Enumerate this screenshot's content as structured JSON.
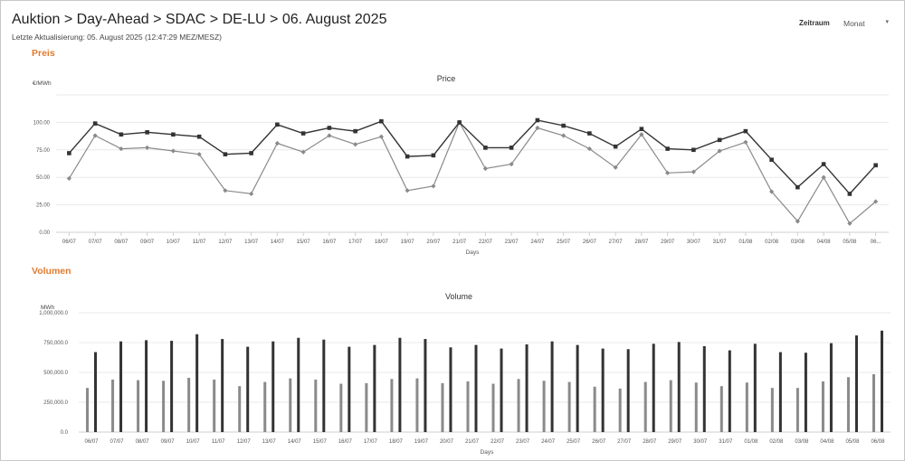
{
  "header": {
    "title": "Auktion > Day-Ahead > SDAC > DE-LU > 06. August 2025",
    "last_update": "Letzte Aktualisierung: 05. August 2025 (12:47:29 MEZ/MESZ)",
    "period_label": "Zeitraum",
    "period_value": "Monat"
  },
  "sections": {
    "price": "Preis",
    "volume": "Volumen"
  },
  "colors": {
    "accent": "#e07a2f",
    "series_dark": "#333333",
    "series_light": "#8a8a8a"
  },
  "chart_data": [
    {
      "type": "line",
      "title": "Price",
      "ylabel": "€/MWh",
      "xlabel": "Days",
      "ylim": [
        0,
        125
      ],
      "yticks": [
        "0.00",
        "25.00",
        "50.00",
        "75.00",
        "100.00"
      ],
      "grid": true,
      "categories": [
        "06/07",
        "07/07",
        "08/07",
        "09/07",
        "10/07",
        "11/07",
        "12/07",
        "13/07",
        "14/07",
        "15/07",
        "16/07",
        "17/07",
        "18/07",
        "19/07",
        "20/07",
        "21/07",
        "22/07",
        "23/07",
        "24/07",
        "25/07",
        "26/07",
        "27/07",
        "28/07",
        "29/07",
        "30/07",
        "31/07",
        "01/08",
        "02/08",
        "03/08",
        "04/08",
        "05/08",
        "06..."
      ],
      "series": [
        {
          "values": [
            72,
            99,
            89,
            91,
            89,
            87,
            71,
            72,
            98,
            90,
            95,
            92,
            101,
            69,
            70,
            100,
            77,
            77,
            102,
            97,
            90,
            78,
            94,
            76,
            75,
            84,
            92,
            66,
            41,
            62,
            35,
            61
          ]
        },
        {
          "values": [
            49,
            88,
            76,
            77,
            74,
            71,
            38,
            35,
            81,
            73,
            88,
            80,
            87,
            38,
            42,
            100,
            58,
            62,
            95,
            88,
            76,
            59,
            89,
            54,
            55,
            74,
            82,
            37,
            10,
            50,
            8,
            28
          ]
        }
      ]
    },
    {
      "type": "bar",
      "title": "Volume",
      "ylabel": "MWh",
      "xlabel": "Days",
      "ylim": [
        0,
        1000000
      ],
      "yticks": [
        "0.0",
        "250,000.0",
        "500,000.0",
        "750,000.0",
        "1,000,000.0"
      ],
      "grid": true,
      "categories": [
        "06/07",
        "07/07",
        "08/07",
        "09/07",
        "10/07",
        "11/07",
        "12/07",
        "13/07",
        "14/07",
        "15/07",
        "16/07",
        "17/07",
        "18/07",
        "19/07",
        "20/07",
        "21/07",
        "22/07",
        "23/07",
        "24/07",
        "25/07",
        "26/07",
        "27/07",
        "28/07",
        "29/07",
        "30/07",
        "31/07",
        "01/08",
        "02/08",
        "03/08",
        "04/08",
        "05/08",
        "06/08"
      ],
      "series": [
        {
          "values": [
            370000,
            440000,
            435000,
            430000,
            455000,
            440000,
            385000,
            420000,
            450000,
            440000,
            405000,
            410000,
            445000,
            450000,
            410000,
            425000,
            405000,
            445000,
            430000,
            420000,
            380000,
            365000,
            420000,
            435000,
            415000,
            385000,
            415000,
            370000,
            370000,
            425000,
            460000,
            485000
          ]
        },
        {
          "values": [
            670000,
            760000,
            770000,
            765000,
            820000,
            780000,
            715000,
            760000,
            790000,
            775000,
            715000,
            730000,
            790000,
            780000,
            710000,
            730000,
            700000,
            735000,
            760000,
            730000,
            700000,
            695000,
            740000,
            755000,
            720000,
            685000,
            740000,
            670000,
            665000,
            745000,
            810000,
            850000
          ]
        }
      ]
    }
  ]
}
